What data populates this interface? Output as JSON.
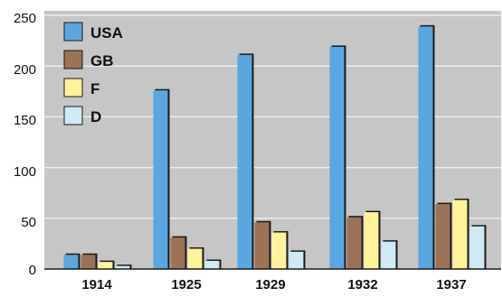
{
  "chart_data": {
    "type": "bar",
    "categories": [
      "1914",
      "1925",
      "1929",
      "1932",
      "1937"
    ],
    "series": [
      {
        "name": "USA",
        "values": [
          14,
          176,
          211,
          219,
          239
        ]
      },
      {
        "name": "GB",
        "values": [
          14,
          31,
          46,
          51,
          64
        ]
      },
      {
        "name": "F",
        "values": [
          7,
          20,
          36,
          56,
          68
        ]
      },
      {
        "name": "D",
        "values": [
          3,
          8,
          17,
          27,
          42
        ]
      }
    ],
    "ylim": [
      0,
      250
    ],
    "yticks": [
      "0",
      "50",
      "100",
      "150",
      "200",
      "250"
    ],
    "grid": true,
    "legend": "top-left"
  },
  "colors": {
    "background": "#c6c6c6",
    "grid": "#ececec",
    "axis": "#1a1a1a",
    "series": [
      "#5aa6e0",
      "#9c7357",
      "#fff29a",
      "#cfeaf4"
    ],
    "shadow": "#1a1a1a"
  }
}
